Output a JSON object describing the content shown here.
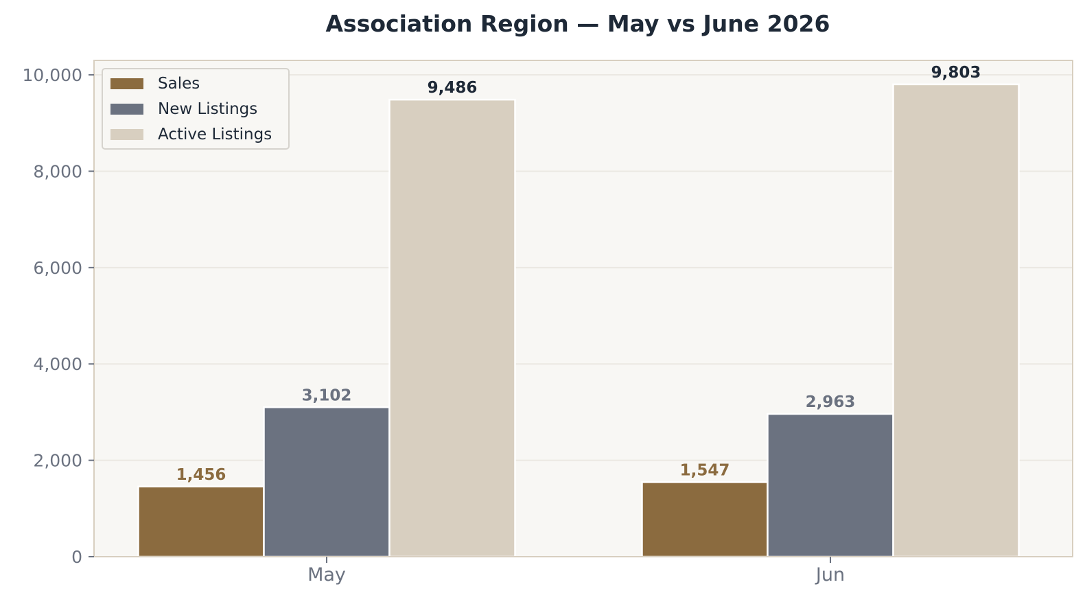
{
  "chart_data": {
    "type": "bar",
    "title": "Association Region — May vs June 2026",
    "xlabel": "",
    "ylabel": "",
    "categories": [
      "May",
      "Jun"
    ],
    "series": [
      {
        "name": "Sales",
        "values": [
          1456,
          1547
        ],
        "labels": [
          "1,456",
          "1,547"
        ],
        "color": "#8b6b3f",
        "label_color": "#8b6b3f"
      },
      {
        "name": "New Listings",
        "values": [
          3102,
          2963
        ],
        "labels": [
          "3,102",
          "2,963"
        ],
        "color": "#6b7280",
        "label_color": "#6b7280"
      },
      {
        "name": "Active Listings",
        "values": [
          9486,
          9803
        ],
        "labels": [
          "9,486",
          "9,803"
        ],
        "color": "#d8cfc0",
        "label_color": "#1e2937"
      }
    ],
    "ylim": [
      0,
      10300
    ],
    "yticks": [
      0,
      2000,
      4000,
      6000,
      8000,
      10000
    ],
    "ytick_labels": [
      "0",
      "2,000",
      "4,000",
      "6,000",
      "8,000",
      "10,000"
    ],
    "grid": "horizontal",
    "legend_position": "top-left",
    "colors": {
      "plot_background": "#f8f7f4",
      "plot_border": "#d8cfc0",
      "grid": "#ebe8e2",
      "title": "#1e2937",
      "ticks": "#6b7280"
    }
  }
}
